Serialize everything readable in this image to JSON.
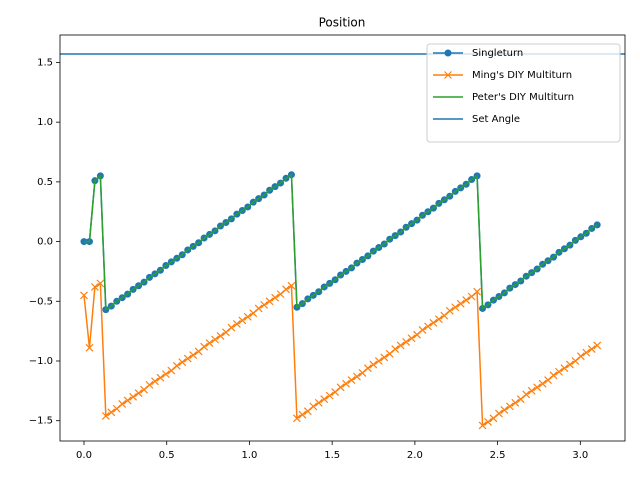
{
  "chart_data": {
    "type": "line",
    "title": "Position",
    "x": [
      0,
      0.033,
      0.066,
      0.099,
      0.132,
      0.165,
      0.198,
      0.231,
      0.264,
      0.297,
      0.33,
      0.363,
      0.396,
      0.429,
      0.462,
      0.495,
      0.528,
      0.561,
      0.594,
      0.627,
      0.66,
      0.693,
      0.726,
      0.759,
      0.792,
      0.825,
      0.858,
      0.891,
      0.924,
      0.957,
      0.99,
      1.023,
      1.056,
      1.089,
      1.122,
      1.155,
      1.188,
      1.221,
      1.254,
      1.287,
      1.32,
      1.353,
      1.386,
      1.419,
      1.452,
      1.485,
      1.518,
      1.551,
      1.584,
      1.617,
      1.65,
      1.683,
      1.716,
      1.749,
      1.782,
      1.815,
      1.848,
      1.881,
      1.914,
      1.947,
      1.98,
      2.013,
      2.046,
      2.079,
      2.112,
      2.145,
      2.178,
      2.211,
      2.244,
      2.277,
      2.31,
      2.343,
      2.376,
      2.409,
      2.442,
      2.475,
      2.508,
      2.541,
      2.574,
      2.607,
      2.64,
      2.673,
      2.706,
      2.739,
      2.772,
      2.805,
      2.838,
      2.871,
      2.904,
      2.937,
      2.97,
      3.003,
      3.036,
      3.069,
      3.102
    ],
    "series": [
      {
        "name": "Singleturn",
        "color": "#1f77b4",
        "marker": "o",
        "values": [
          0,
          0,
          0.51,
          0.55,
          -0.57,
          -0.54,
          -0.5,
          -0.47,
          -0.44,
          -0.4,
          -0.37,
          -0.34,
          -0.3,
          -0.27,
          -0.24,
          -0.2,
          -0.17,
          -0.14,
          -0.11,
          -0.07,
          -0.04,
          -0.01,
          0.03,
          0.06,
          0.09,
          0.13,
          0.16,
          0.19,
          0.23,
          0.26,
          0.29,
          0.33,
          0.36,
          0.39,
          0.43,
          0.46,
          0.49,
          0.53,
          0.56,
          -0.55,
          -0.52,
          -0.48,
          -0.45,
          -0.42,
          -0.38,
          -0.35,
          -0.32,
          -0.28,
          -0.25,
          -0.22,
          -0.18,
          -0.15,
          -0.12,
          -0.08,
          -0.05,
          -0.02,
          0.02,
          0.05,
          0.08,
          0.12,
          0.15,
          0.18,
          0.22,
          0.25,
          0.28,
          0.32,
          0.35,
          0.38,
          0.42,
          0.45,
          0.48,
          0.52,
          0.55,
          -0.56,
          -0.53,
          -0.49,
          -0.46,
          -0.43,
          -0.39,
          -0.36,
          -0.33,
          -0.29,
          -0.26,
          -0.23,
          -0.19,
          -0.16,
          -0.13,
          -0.09,
          -0.06,
          -0.03,
          0.01,
          0.04,
          0.07,
          0.11,
          0.14
        ]
      },
      {
        "name": "Ming's DIY Multiturn",
        "color": "#ff7f0e",
        "marker": "x",
        "values": [
          -0.45,
          -0.89,
          -0.38,
          -0.35,
          -1.46,
          -1.43,
          -1.4,
          -1.36,
          -1.33,
          -1.3,
          -1.27,
          -1.24,
          -1.2,
          -1.17,
          -1.14,
          -1.11,
          -1.08,
          -1.04,
          -1.01,
          -0.98,
          -0.95,
          -0.92,
          -0.88,
          -0.85,
          -0.82,
          -0.79,
          -0.76,
          -0.72,
          -0.69,
          -0.66,
          -0.63,
          -0.6,
          -0.56,
          -0.53,
          -0.5,
          -0.47,
          -0.44,
          -0.4,
          -0.37,
          -1.48,
          -1.45,
          -1.42,
          -1.38,
          -1.35,
          -1.32,
          -1.29,
          -1.26,
          -1.22,
          -1.19,
          -1.16,
          -1.13,
          -1.1,
          -1.06,
          -1.03,
          -1.0,
          -0.97,
          -0.94,
          -0.9,
          -0.87,
          -0.84,
          -0.81,
          -0.78,
          -0.74,
          -0.71,
          -0.68,
          -0.65,
          -0.62,
          -0.58,
          -0.55,
          -0.52,
          -0.49,
          -0.46,
          -0.42,
          -1.54,
          -1.51,
          -1.48,
          -1.44,
          -1.41,
          -1.38,
          -1.35,
          -1.32,
          -1.28,
          -1.25,
          -1.22,
          -1.19,
          -1.16,
          -1.12,
          -1.09,
          -1.06,
          -1.03,
          -1.0,
          -0.96,
          -0.93,
          -0.9,
          -0.87
        ]
      },
      {
        "name": "Peter's DIY Multiturn",
        "color": "#2ca02c",
        "marker": "none",
        "values": [
          0,
          0,
          0.51,
          0.55,
          -0.57,
          -0.54,
          -0.5,
          -0.47,
          -0.44,
          -0.4,
          -0.37,
          -0.34,
          -0.3,
          -0.27,
          -0.24,
          -0.2,
          -0.17,
          -0.14,
          -0.11,
          -0.07,
          -0.04,
          -0.01,
          0.03,
          0.06,
          0.09,
          0.13,
          0.16,
          0.19,
          0.23,
          0.26,
          0.29,
          0.33,
          0.36,
          0.39,
          0.43,
          0.46,
          0.49,
          0.53,
          0.56,
          -0.55,
          -0.52,
          -0.48,
          -0.45,
          -0.42,
          -0.38,
          -0.35,
          -0.32,
          -0.28,
          -0.25,
          -0.22,
          -0.18,
          -0.15,
          -0.12,
          -0.08,
          -0.05,
          -0.02,
          0.02,
          0.05,
          0.08,
          0.12,
          0.15,
          0.18,
          0.22,
          0.25,
          0.28,
          0.32,
          0.35,
          0.38,
          0.42,
          0.45,
          0.48,
          0.52,
          0.55,
          -0.56,
          -0.53,
          -0.49,
          -0.46,
          -0.43,
          -0.39,
          -0.36,
          -0.33,
          -0.29,
          -0.26,
          -0.23,
          -0.19,
          -0.16,
          -0.13,
          -0.09,
          -0.06,
          -0.03,
          0.01,
          0.04,
          0.07,
          0.11,
          0.14
        ]
      }
    ],
    "hlines": [
      {
        "name": "Set Angle",
        "color": "#1f77b4",
        "value": 1.5708
      }
    ],
    "xlim": [
      -0.145,
      3.27
    ],
    "ylim": [
      -1.67,
      1.73
    ],
    "xticks": [
      {
        "value": 0,
        "label": "0.0"
      },
      {
        "value": 0.5,
        "label": "0.5"
      },
      {
        "value": 1,
        "label": "1.0"
      },
      {
        "value": 1.5,
        "label": "1.5"
      },
      {
        "value": 2,
        "label": "2.0"
      },
      {
        "value": 2.5,
        "label": "2.5"
      },
      {
        "value": 3,
        "label": "3.0"
      }
    ],
    "yticks": [
      {
        "value": -1.5,
        "label": "−1.5"
      },
      {
        "value": -1,
        "label": "−1.0"
      },
      {
        "value": -0.5,
        "label": "−0.5"
      },
      {
        "value": 0,
        "label": "0.0"
      },
      {
        "value": 0.5,
        "label": "0.5"
      },
      {
        "value": 1,
        "label": "1.0"
      },
      {
        "value": 1.5,
        "label": "1.5"
      }
    ],
    "grid": false,
    "legend": "upper right"
  }
}
